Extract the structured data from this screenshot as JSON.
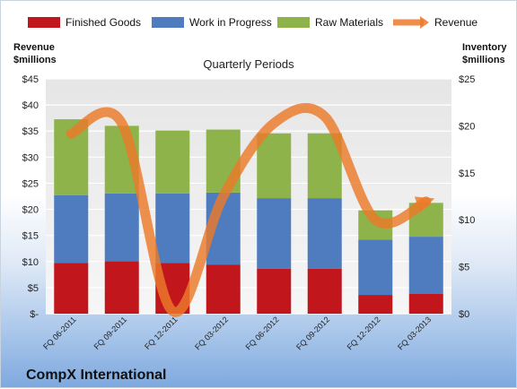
{
  "chart_data": {
    "type": "bar",
    "stacked": true,
    "subtitle": "Quarterly Periods",
    "footer_title": "CompX International",
    "categories": [
      "FQ 06-2011",
      "FQ 09-2011",
      "FQ 12-2011",
      "FQ 03-2012",
      "FQ 06-2012",
      "FQ 09-2012",
      "FQ 12-2012",
      "FQ 03-2013"
    ],
    "left_axis": {
      "title_line1": "Revenue",
      "title_line2": "$millions",
      "ylim": [
        0,
        45
      ],
      "ticks": [
        "$-",
        "$5",
        "$10",
        "$15",
        "$20",
        "$25",
        "$30",
        "$35",
        "$40",
        "$45"
      ]
    },
    "right_axis": {
      "title_line1": "Inventory",
      "title_line2": "$millions",
      "ylim": [
        0,
        25
      ],
      "ticks": [
        "$0",
        "$5",
        "$10",
        "$15",
        "$20",
        "$25"
      ]
    },
    "series": [
      {
        "name": "Finished Goods",
        "axis": "right",
        "color": "#c0161c",
        "values": [
          5.4,
          5.6,
          5.4,
          5.2,
          4.8,
          4.8,
          2.0,
          2.1
        ]
      },
      {
        "name": "Work in Progress",
        "axis": "right",
        "color": "#4f7bbf",
        "values": [
          7.2,
          7.2,
          7.4,
          7.7,
          7.5,
          7.5,
          5.9,
          6.1
        ]
      },
      {
        "name": "Raw Materials",
        "axis": "right",
        "color": "#8db34a",
        "values": [
          8.1,
          7.2,
          6.7,
          6.7,
          6.9,
          6.9,
          3.1,
          3.6
        ]
      },
      {
        "name": "Revenue",
        "axis": "left",
        "type": "line",
        "color": "#ec7a2a",
        "values": [
          34.5,
          36.5,
          0.5,
          22.5,
          36.5,
          37.8,
          18.0,
          21.5
        ]
      }
    ],
    "legend_position": "top",
    "grid": true
  }
}
